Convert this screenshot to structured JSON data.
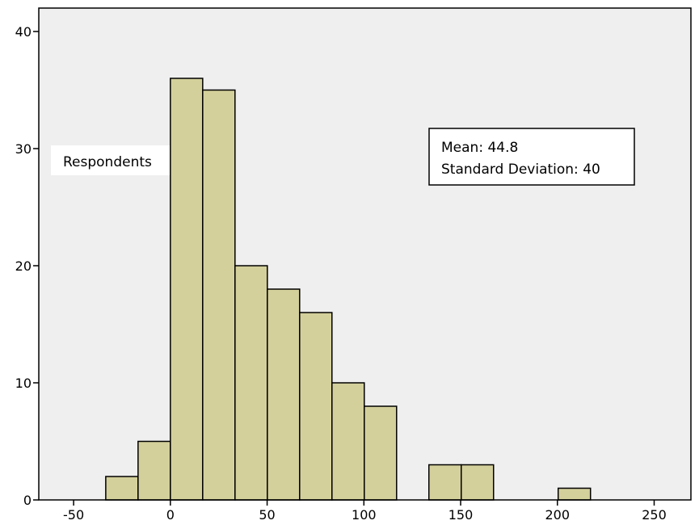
{
  "chart_data": {
    "type": "bar",
    "subtype": "histogram",
    "bin_width": 16.7,
    "bins": [
      {
        "start": -33.4,
        "end": -16.7,
        "count": 2
      },
      {
        "start": -16.7,
        "end": 0,
        "count": 5
      },
      {
        "start": 0,
        "end": 16.7,
        "count": 36
      },
      {
        "start": 16.7,
        "end": 33.4,
        "count": 35
      },
      {
        "start": 33.4,
        "end": 50.1,
        "count": 20
      },
      {
        "start": 50.1,
        "end": 66.8,
        "count": 18
      },
      {
        "start": 66.8,
        "end": 83.5,
        "count": 16
      },
      {
        "start": 83.5,
        "end": 100.2,
        "count": 10
      },
      {
        "start": 100.2,
        "end": 116.9,
        "count": 8
      },
      {
        "start": 133.6,
        "end": 150.3,
        "count": 3
      },
      {
        "start": 150.3,
        "end": 167,
        "count": 3
      },
      {
        "start": 200.4,
        "end": 217.1,
        "count": 1
      }
    ],
    "xlim": [
      -68,
      269
    ],
    "ylim": [
      0,
      42
    ],
    "x_ticks": [
      -50,
      0,
      50,
      100,
      150,
      200,
      250
    ],
    "y_ticks": [
      0,
      10,
      20,
      30,
      40
    ],
    "x_tick_labels": [
      "-50",
      "0",
      "50",
      "100",
      "150",
      "200",
      "250"
    ],
    "y_tick_labels": [
      "0",
      "10",
      "20",
      "30",
      "40"
    ],
    "ylabel": "Respondents",
    "title": "",
    "xlabel": "",
    "grid": false,
    "legend": "none",
    "colors": {
      "bar_fill": "#d4d09b",
      "bar_stroke": "#000000",
      "plot_background": "#efefef",
      "axis": "#000000"
    }
  },
  "annotations": {
    "ylabel_text": "Respondents",
    "stats_mean": "Mean: 44.8",
    "stats_sd": "Standard Deviation: 40"
  }
}
